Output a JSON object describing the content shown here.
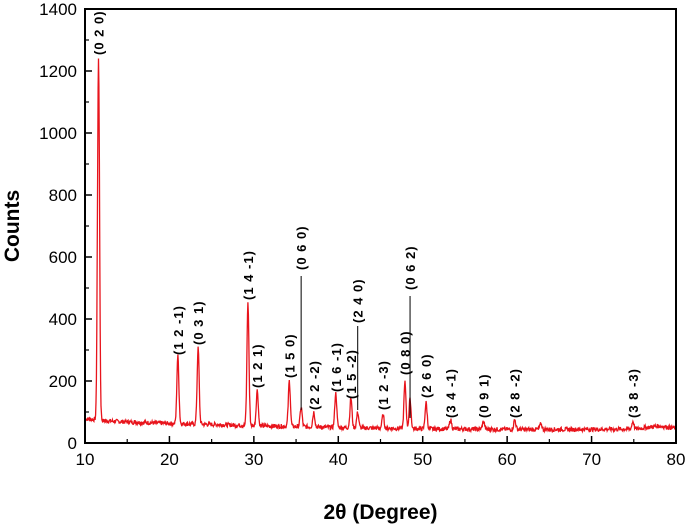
{
  "chart_data": {
    "type": "line",
    "xlabel": "2θ (Degree)",
    "ylabel": "Counts",
    "xlim": [
      10,
      80
    ],
    "ylim": [
      0,
      1400
    ],
    "xticks": [
      10,
      20,
      30,
      40,
      50,
      60,
      70,
      80
    ],
    "yticks": [
      0,
      200,
      400,
      600,
      800,
      1000,
      1200,
      1400
    ],
    "grid": false,
    "line_color": "#e8141c",
    "baseline": [
      [
        10,
        78
      ],
      [
        11,
        76
      ],
      [
        12,
        72
      ],
      [
        15,
        68
      ],
      [
        20,
        63
      ],
      [
        25,
        60
      ],
      [
        30,
        56
      ],
      [
        35,
        53
      ],
      [
        40,
        50
      ],
      [
        45,
        48
      ],
      [
        50,
        46
      ],
      [
        55,
        45
      ],
      [
        60,
        44
      ],
      [
        65,
        44
      ],
      [
        70,
        44
      ],
      [
        75,
        45
      ],
      [
        78,
        55
      ],
      [
        80,
        48
      ]
    ],
    "peaks": [
      {
        "x": 11.6,
        "y": 1245,
        "label": "(0 2 0)"
      },
      {
        "x": 21.0,
        "y": 280,
        "label": "(1 2 -1)"
      },
      {
        "x": 23.4,
        "y": 305,
        "label": "(0 3 1)"
      },
      {
        "x": 29.3,
        "y": 450,
        "label": "(1 4 -1)"
      },
      {
        "x": 30.4,
        "y": 170,
        "label": "(1 2 1)"
      },
      {
        "x": 34.2,
        "y": 200,
        "label": "(1 5 0)"
      },
      {
        "x": 35.6,
        "y": 115,
        "label": "(0 6 0)"
      },
      {
        "x": 37.1,
        "y": 100,
        "label": "(2 2 -2)"
      },
      {
        "x": 39.7,
        "y": 160,
        "label": "(1 6 -1)"
      },
      {
        "x": 41.5,
        "y": 145,
        "label": "(1 5 -2)"
      },
      {
        "x": 42.3,
        "y": 100,
        "label": "(2 4 0)"
      },
      {
        "x": 45.3,
        "y": 90,
        "label": "(1 2 -3)"
      },
      {
        "x": 47.9,
        "y": 195,
        "label": "(0 8 0)"
      },
      {
        "x": 48.5,
        "y": 140,
        "label": "(0 6 2)"
      },
      {
        "x": 50.4,
        "y": 130,
        "label": "(2 6 0)"
      },
      {
        "x": 53.3,
        "y": 75,
        "label": "(3 4 -1)"
      },
      {
        "x": 57.2,
        "y": 70,
        "label": "(0 9 1)"
      },
      {
        "x": 60.9,
        "y": 75,
        "label": "(2 8 -2)"
      },
      {
        "x": 64.0,
        "y": 62
      },
      {
        "x": 74.9,
        "y": 70,
        "label": "(3 8 -3)"
      }
    ]
  }
}
